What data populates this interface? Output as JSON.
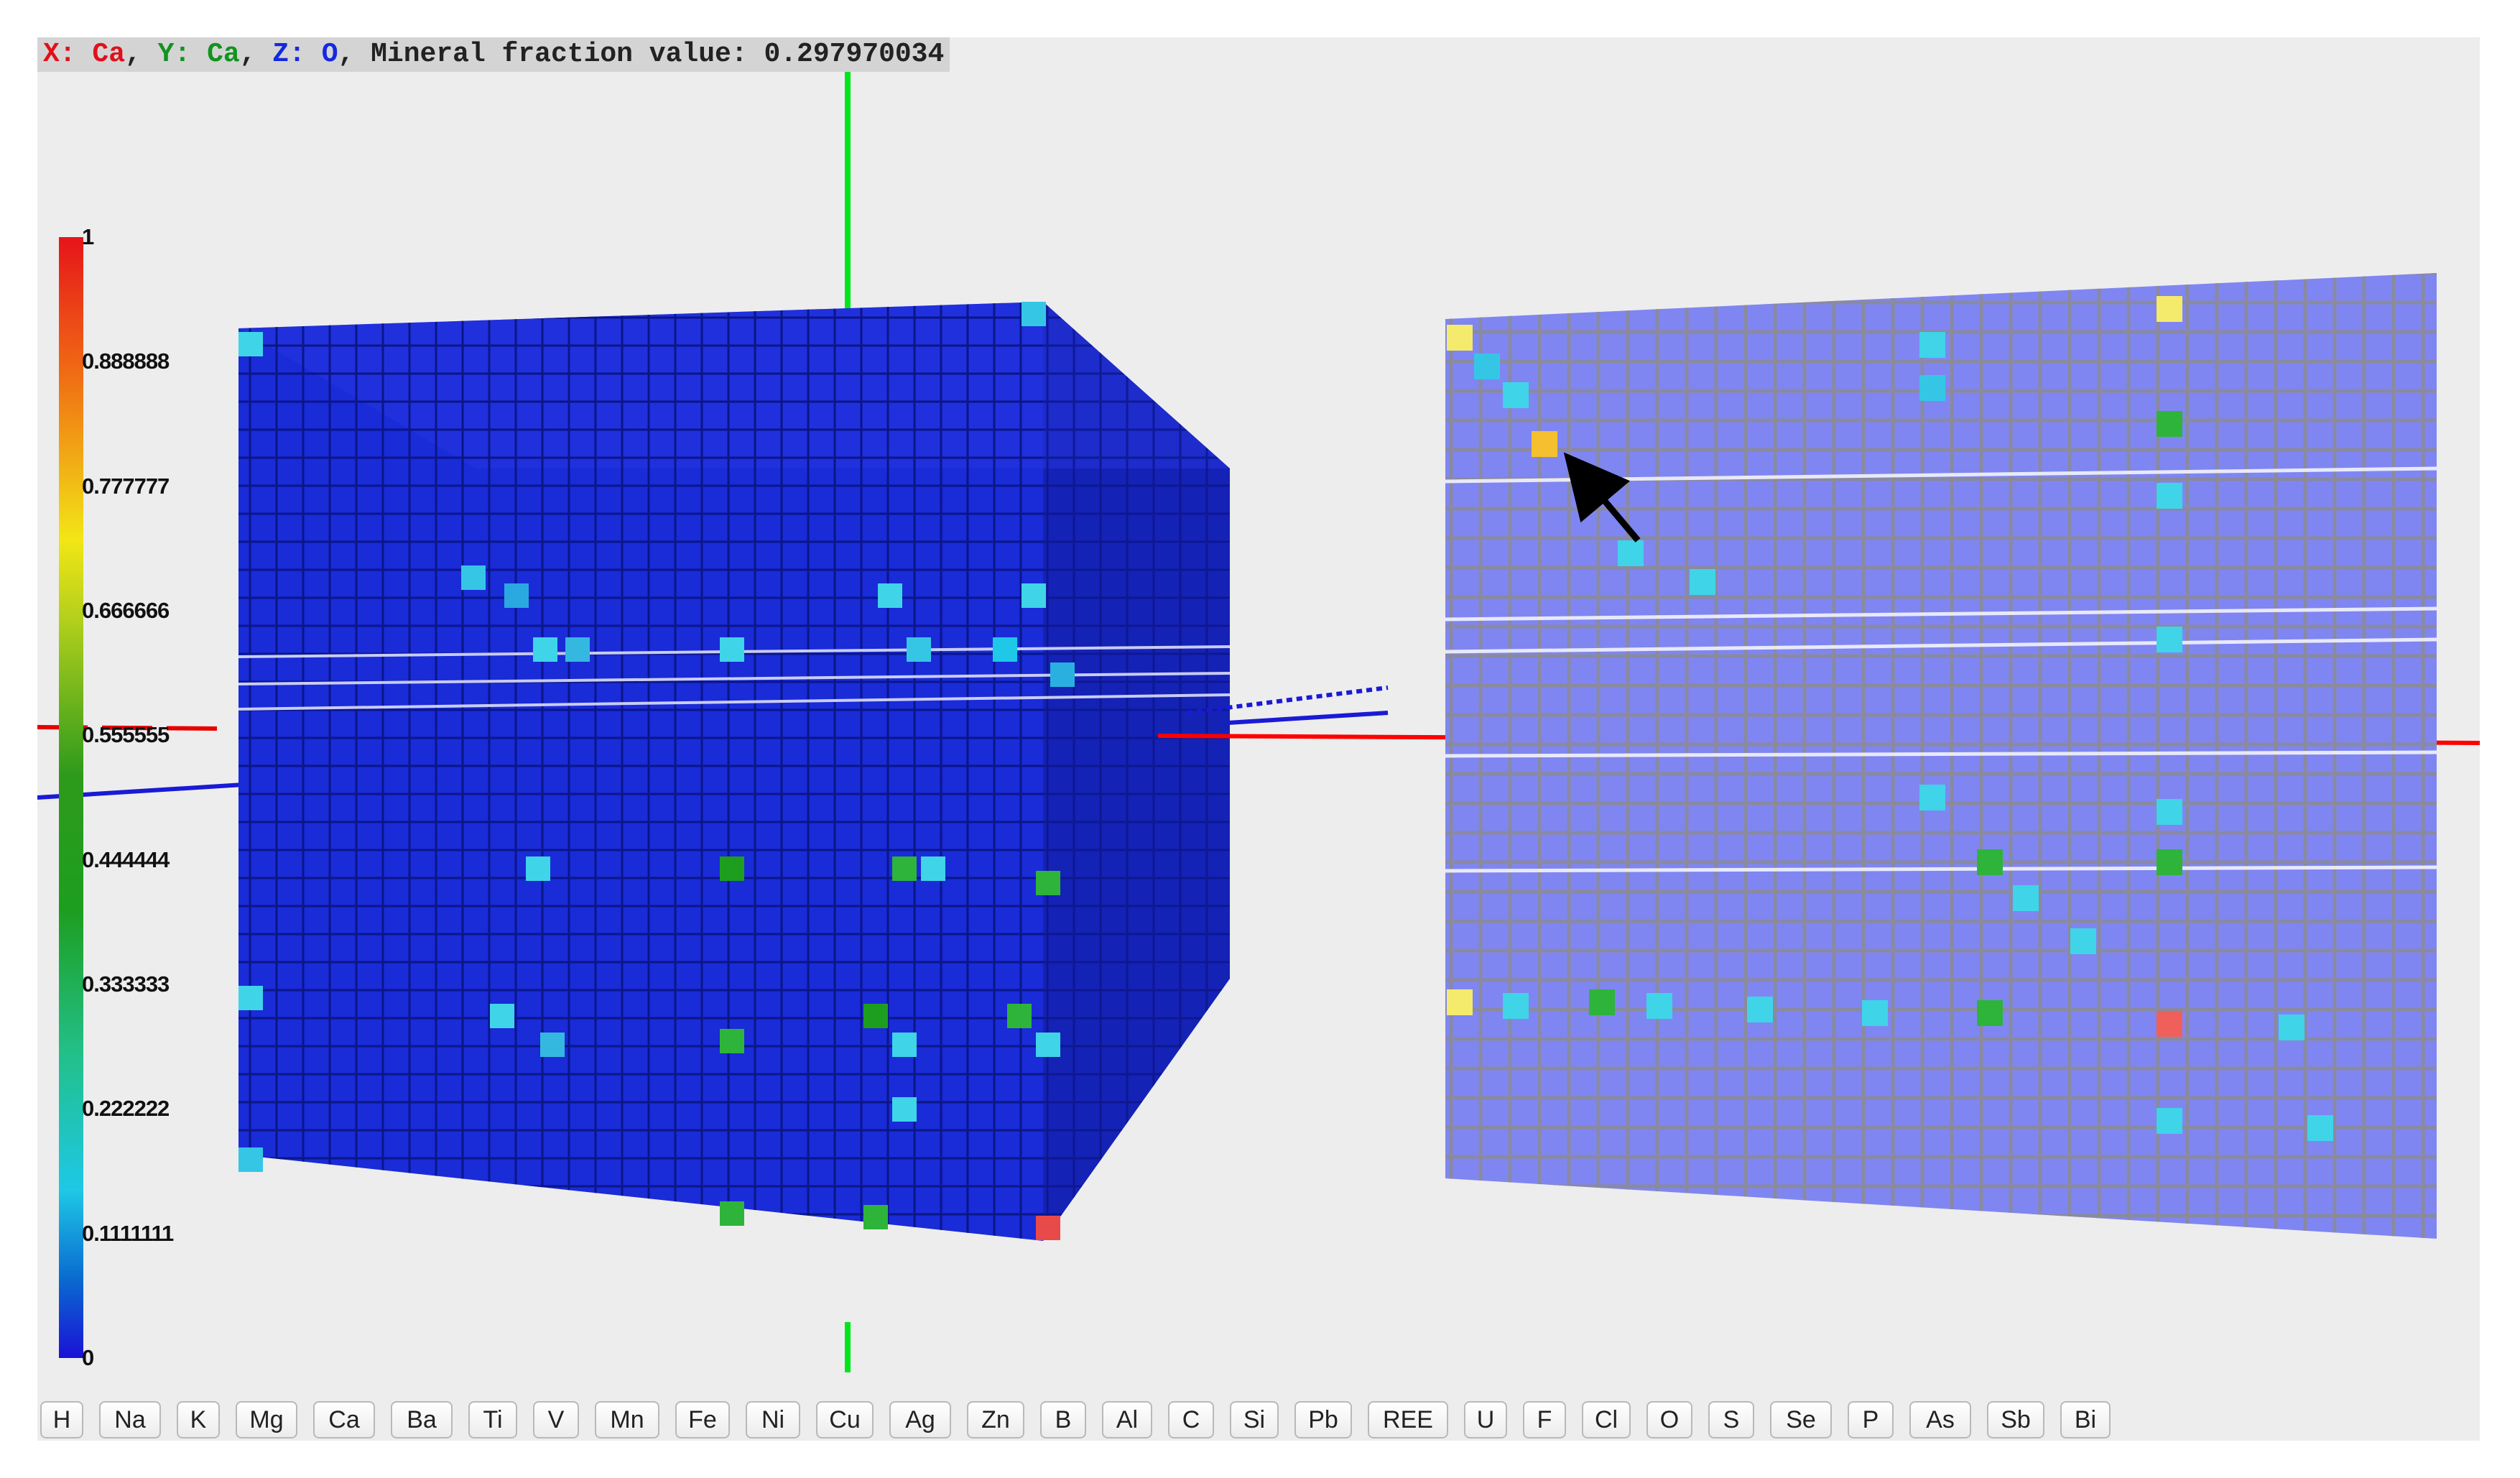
{
  "hud": {
    "x_label": "X:",
    "x_element": "Ca",
    "y_label": "Y:",
    "y_element": "Ca",
    "z_label": "Z:",
    "z_element": "O",
    "value_label": "Mineral fraction value:",
    "value": "0.297970034"
  },
  "colorbar": {
    "ticks": [
      "1",
      "0.888888",
      "0.777777",
      "0.666666",
      "0.555555",
      "0.444444",
      "0.333333",
      "0.222222",
      "0.1111111",
      "0"
    ],
    "colors": [
      "#1a12d6",
      "#1ec8e6",
      "#1d9e1f",
      "#f2e616",
      "#e6141a"
    ]
  },
  "element_buttons": [
    "H",
    "Na",
    "K",
    "Mg",
    "Ca",
    "Ba",
    "Ti",
    "V",
    "Mn",
    "Fe",
    "Ni",
    "Cu",
    "Ag",
    "Zn",
    "B",
    "Al",
    "C",
    "Si",
    "Pb",
    "REE",
    "U",
    "F",
    "Cl",
    "O",
    "S",
    "Se",
    "P",
    "As",
    "Sb",
    "Bi"
  ],
  "scene": {
    "axis_colors": {
      "x": "#ff0000",
      "y": "#00e61a",
      "z": "#1a1ad6"
    },
    "cube_color": "#1a2bd8",
    "slice_color": "#7f86f2",
    "selected_marker_icon": "arrow-pointer-icon"
  }
}
